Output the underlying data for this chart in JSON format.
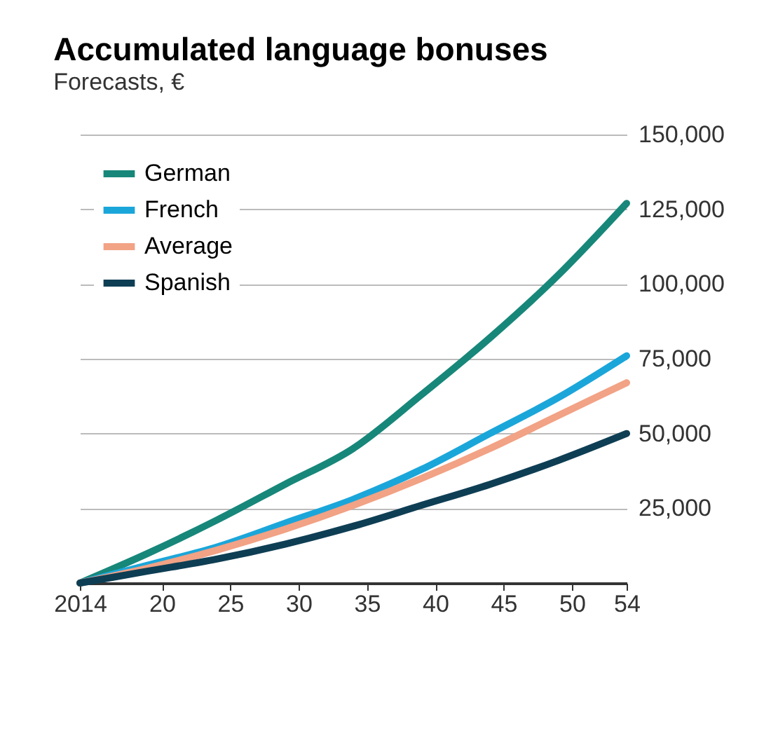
{
  "chart_data": {
    "type": "line",
    "title": "Accumulated language bonuses",
    "subtitle": "Forecasts, €",
    "x": [
      2014,
      2019,
      2024,
      2029,
      2034,
      2039,
      2044,
      2049,
      2054
    ],
    "series": [
      {
        "name": "German",
        "color": "#17877a",
        "values": [
          0,
          10000,
          21000,
          33000,
          45000,
          63000,
          82000,
          103000,
          127000
        ]
      },
      {
        "name": "French",
        "color": "#1ba6da",
        "values": [
          0,
          6000,
          12000,
          20000,
          28000,
          38000,
          50000,
          62000,
          76000
        ]
      },
      {
        "name": "Average",
        "color": "#f2a285",
        "values": [
          0,
          5000,
          11000,
          18000,
          26000,
          35000,
          45000,
          56000,
          67000
        ]
      },
      {
        "name": "Spanish",
        "color": "#0e3e54",
        "values": [
          0,
          4000,
          8000,
          13000,
          19000,
          26000,
          33000,
          41000,
          50000
        ]
      }
    ],
    "xlim": [
      2014,
      2054
    ],
    "xticks": [
      {
        "value": 2014,
        "label": "2014"
      },
      {
        "value": 2020,
        "label": "20"
      },
      {
        "value": 2025,
        "label": "25"
      },
      {
        "value": 2030,
        "label": "30"
      },
      {
        "value": 2035,
        "label": "35"
      },
      {
        "value": 2040,
        "label": "40"
      },
      {
        "value": 2045,
        "label": "45"
      },
      {
        "value": 2050,
        "label": "50"
      },
      {
        "value": 2054,
        "label": "54"
      }
    ],
    "ylim": [
      0,
      150000
    ],
    "yticks": [
      {
        "value": 0,
        "label": null
      },
      {
        "value": 25000,
        "label": "25,000"
      },
      {
        "value": 50000,
        "label": "50,000"
      },
      {
        "value": 75000,
        "label": "75,000"
      },
      {
        "value": 100000,
        "label": "100,000"
      },
      {
        "value": 125000,
        "label": "125,000"
      },
      {
        "value": 150000,
        "label": "150,000"
      }
    ],
    "grid": "y",
    "legend": "top left",
    "marker": "none",
    "line_style": "solid"
  }
}
